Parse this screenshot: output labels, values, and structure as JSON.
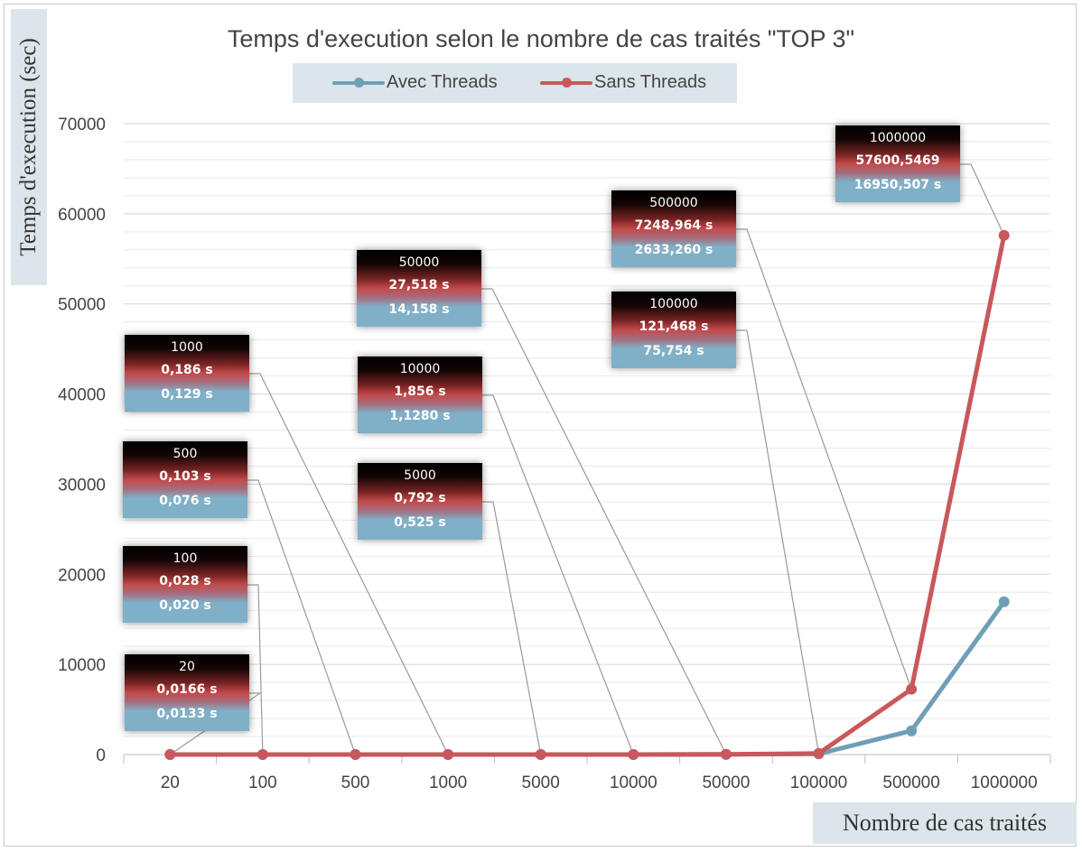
{
  "chart_data": {
    "type": "line",
    "title": "Temps d'execution selon le nombre de cas traités \"TOP 3\"",
    "xlabel": "Nombre de cas traités",
    "ylabel": "Temps d'execution (sec)",
    "categories": [
      "20",
      "100",
      "500",
      "1000",
      "5000",
      "10000",
      "50000",
      "100000",
      "500000",
      "1000000"
    ],
    "ylim": [
      0,
      70000
    ],
    "yticks": [
      0,
      10000,
      20000,
      30000,
      40000,
      50000,
      60000,
      70000
    ],
    "grid": true,
    "legend_position": "top",
    "series": [
      {
        "name": "Avec Threads",
        "color": "#6f9fb6",
        "values": [
          0.0133,
          0.02,
          0.076,
          0.129,
          0.525,
          1.128,
          14.158,
          75.754,
          2633.26,
          16950.507
        ]
      },
      {
        "name": "Sans Threads",
        "color": "#c8585c",
        "values": [
          0.0166,
          0.028,
          0.103,
          0.186,
          0.792,
          1.856,
          27.518,
          121.468,
          7248.964,
          57600.5469
        ]
      }
    ],
    "annotations": [
      {
        "index": 0,
        "line1": "20",
        "line2": "0,0166 s",
        "line3": "0,0133 s"
      },
      {
        "index": 1,
        "line1": "100",
        "line2": "0,028 s",
        "line3": "0,020 s"
      },
      {
        "index": 2,
        "line1": "500",
        "line2": "0,103 s",
        "line3": "0,076 s"
      },
      {
        "index": 3,
        "line1": "1000",
        "line2": "0,186 s",
        "line3": "0,129 s"
      },
      {
        "index": 4,
        "line1": "5000",
        "line2": "0,792 s",
        "line3": "0,525 s"
      },
      {
        "index": 5,
        "line1": "10000",
        "line2": "1,856 s",
        "line3": "1,1280 s"
      },
      {
        "index": 6,
        "line1": "50000",
        "line2": "27,518 s",
        "line3": "14,158 s"
      },
      {
        "index": 7,
        "line1": "100000",
        "line2": "121,468 s",
        "line3": "75,754 s"
      },
      {
        "index": 8,
        "line1": "500000",
        "line2": "7248,964 s",
        "line3": "2633,260 s"
      },
      {
        "index": 9,
        "line1": "1000000",
        "line2": "57600,5469",
        "line3": "16950,507 s"
      }
    ]
  }
}
